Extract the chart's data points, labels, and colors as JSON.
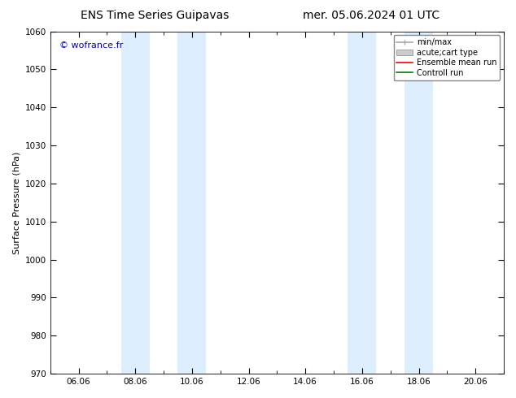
{
  "title_left": "ENS Time Series Guipavas",
  "title_right": "mer. 05.06.2024 01 UTC",
  "ylabel": "Surface Pressure (hPa)",
  "ylim": [
    970,
    1060
  ],
  "yticks": [
    970,
    980,
    990,
    1000,
    1010,
    1020,
    1030,
    1040,
    1050,
    1060
  ],
  "xtick_labels": [
    "06.06",
    "08.06",
    "10.06",
    "12.06",
    "14.06",
    "16.06",
    "18.06",
    "20.06"
  ],
  "xtick_positions": [
    1,
    3,
    5,
    7,
    9,
    11,
    13,
    15
  ],
  "xlim": [
    0,
    16
  ],
  "shaded_bands": [
    {
      "x_start": 2.5,
      "x_end": 3.5
    },
    {
      "x_start": 4.5,
      "x_end": 5.5
    },
    {
      "x_start": 10.5,
      "x_end": 11.5
    },
    {
      "x_start": 12.5,
      "x_end": 13.5
    }
  ],
  "shaded_color": "#ddeeff",
  "bg_color": "#ffffff",
  "watermark": "© wofrance.fr",
  "watermark_color": "#0000cc",
  "legend_entries": [
    {
      "label": "min/max",
      "color": "#aaaaaa",
      "style": "minmax"
    },
    {
      "label": "acute;cart type",
      "color": "#cccccc",
      "style": "fill"
    },
    {
      "label": "Ensemble mean run",
      "color": "#ff0000",
      "style": "line"
    },
    {
      "label": "Controll run",
      "color": "#008000",
      "style": "line"
    }
  ],
  "title_fontsize": 10,
  "axis_fontsize": 8,
  "tick_fontsize": 7.5,
  "legend_fontsize": 7
}
